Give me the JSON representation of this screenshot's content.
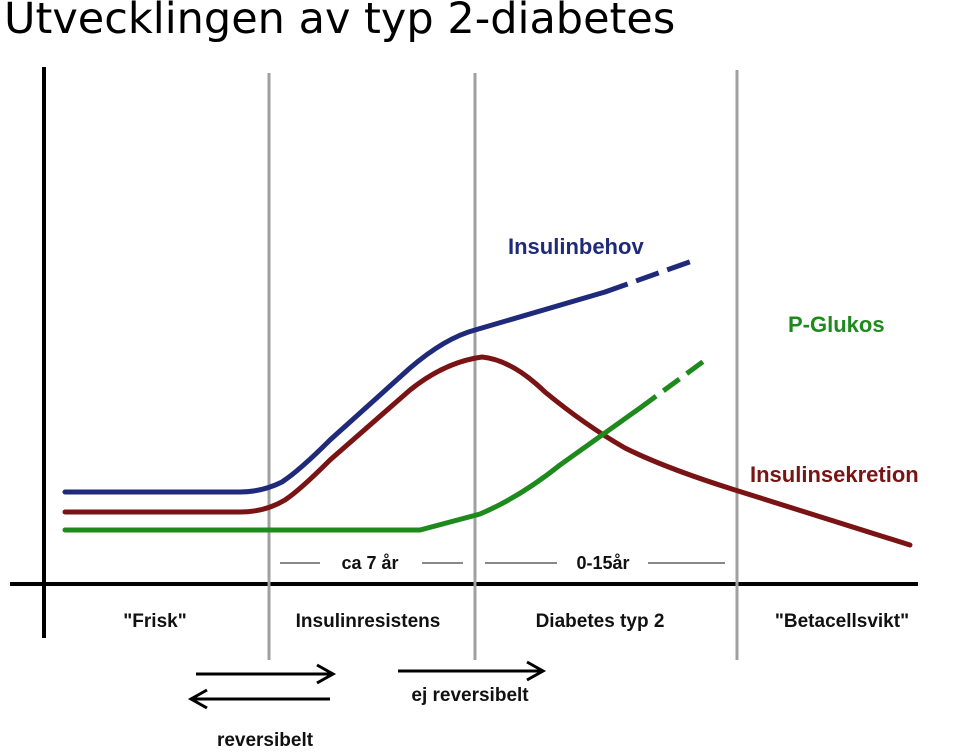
{
  "title": "Utvecklingen av typ 2-diabetes",
  "curves": {
    "insulinbehov": {
      "label": "Insulinbehov",
      "color": "#1f2a7a"
    },
    "p_glukos": {
      "label": "P-Glukos",
      "color": "#1e8a1e"
    },
    "insulinsekretion": {
      "label": "Insulinsekretion",
      "color": "#7a1414"
    }
  },
  "phases": [
    "\"Frisk\"",
    "Insulinresistens",
    "Diabetes typ 2",
    "\"Betacellsvikt\""
  ],
  "durations": [
    "ca 7 år",
    "0-15år"
  ],
  "arrows": {
    "reversible": "reversibelt",
    "irreversible": "ej reversibelt"
  },
  "colors": {
    "axis": "#000000",
    "divider": "#a0a0a0",
    "duration_line": "#888888"
  }
}
